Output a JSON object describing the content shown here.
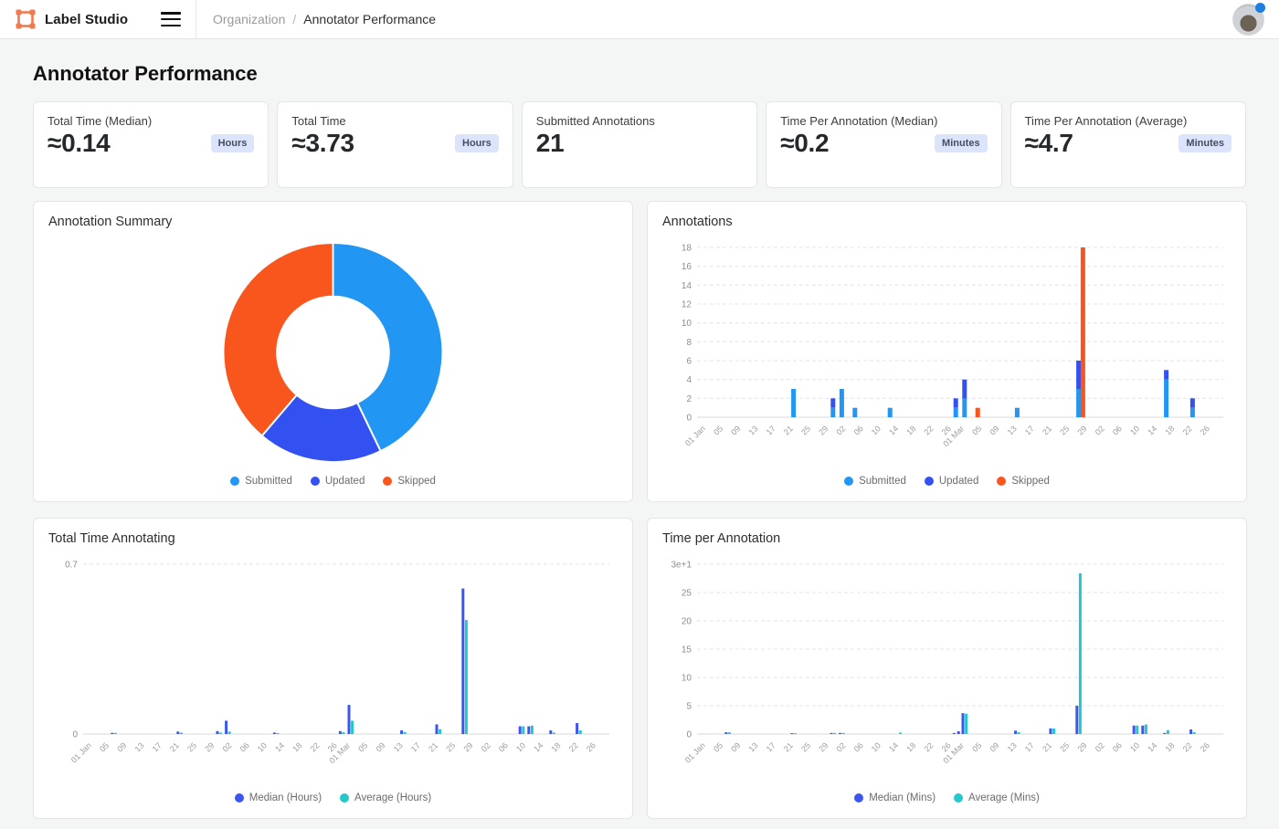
{
  "header": {
    "app_name": "Label Studio",
    "breadcrumb": {
      "parent": "Organization",
      "separator": "/",
      "current": "Annotator Performance"
    }
  },
  "page_title": "Annotator Performance",
  "stat_cards": [
    {
      "label": "Total Time (Median)",
      "value": "≈0.14",
      "unit": "Hours"
    },
    {
      "label": "Total Time",
      "value": "≈3.73",
      "unit": "Hours"
    },
    {
      "label": "Submitted Annotations",
      "value": "21",
      "unit": ""
    },
    {
      "label": "Time Per Annotation (Median)",
      "value": "≈0.2",
      "unit": "Minutes"
    },
    {
      "label": "Time Per Annotation (Average)",
      "value": "≈4.7",
      "unit": "Minutes"
    }
  ],
  "colors": {
    "submitted": "#2196F3",
    "updated": "#3350F1",
    "skipped": "#F9561E",
    "median": "#3D55F0",
    "average": "#24C7CB",
    "brand_orange": "#F0794F",
    "badge_bg": "#dbe4fb"
  },
  "x_axis": {
    "note": "days offset from 01 Jan",
    "domain": [
      -2,
      118
    ],
    "ticks": [
      {
        "d": 0,
        "l": "01 Jan"
      },
      {
        "d": 4,
        "l": "05"
      },
      {
        "d": 8,
        "l": "09"
      },
      {
        "d": 12,
        "l": "13"
      },
      {
        "d": 16,
        "l": "17"
      },
      {
        "d": 20,
        "l": "21"
      },
      {
        "d": 24,
        "l": "25"
      },
      {
        "d": 28,
        "l": "29"
      },
      {
        "d": 32,
        "l": "02"
      },
      {
        "d": 36,
        "l": "06"
      },
      {
        "d": 40,
        "l": "10"
      },
      {
        "d": 44,
        "l": "14"
      },
      {
        "d": 48,
        "l": "18"
      },
      {
        "d": 52,
        "l": "22"
      },
      {
        "d": 56,
        "l": "26"
      },
      {
        "d": 59,
        "l": "01 Mar"
      },
      {
        "d": 63,
        "l": "05"
      },
      {
        "d": 67,
        "l": "09"
      },
      {
        "d": 71,
        "l": "13"
      },
      {
        "d": 75,
        "l": "17"
      },
      {
        "d": 79,
        "l": "21"
      },
      {
        "d": 83,
        "l": "25"
      },
      {
        "d": 87,
        "l": "29"
      },
      {
        "d": 91,
        "l": "02"
      },
      {
        "d": 95,
        "l": "06"
      },
      {
        "d": 99,
        "l": "10"
      },
      {
        "d": 103,
        "l": "14"
      },
      {
        "d": 107,
        "l": "18"
      },
      {
        "d": 111,
        "l": "22"
      },
      {
        "d": 115,
        "l": "26"
      }
    ]
  },
  "chart_data": [
    {
      "type": "pie",
      "title": "Annotation Summary",
      "donut": true,
      "inner_ratio": 0.51,
      "labels": [
        "Submitted",
        "Updated",
        "Skipped"
      ],
      "values": [
        21,
        9,
        19
      ],
      "colors": [
        "#2196F3",
        "#3350F1",
        "#F9561E"
      ],
      "legend_position": "bottom"
    },
    {
      "type": "bar",
      "title": "Annotations",
      "stacked": true,
      "ylim": [
        0,
        18
      ],
      "y_ticks": [
        {
          "v": 0,
          "l": "0"
        },
        {
          "v": 2,
          "l": "2"
        },
        {
          "v": 4,
          "l": "4"
        },
        {
          "v": 6,
          "l": "6"
        },
        {
          "v": 8,
          "l": "8"
        },
        {
          "v": 10,
          "l": "10"
        },
        {
          "v": 12,
          "l": "12"
        },
        {
          "v": 14,
          "l": "14"
        },
        {
          "v": 16,
          "l": "16"
        },
        {
          "v": 18,
          "l": "18"
        }
      ],
      "series": [
        {
          "name": "Submitted",
          "color": "#2196F3",
          "points": [
            {
              "d": 20,
              "v": 3
            },
            {
              "d": 29,
              "v": 1
            },
            {
              "d": 31,
              "v": 3
            },
            {
              "d": 34,
              "v": 1
            },
            {
              "d": 42,
              "v": 1
            },
            {
              "d": 57,
              "v": 1
            },
            {
              "d": 59,
              "v": 2
            },
            {
              "d": 71,
              "v": 1
            },
            {
              "d": 85,
              "v": 3
            },
            {
              "d": 105,
              "v": 4
            },
            {
              "d": 111,
              "v": 1
            }
          ]
        },
        {
          "name": "Updated",
          "color": "#3350F1",
          "points": [
            {
              "d": 29,
              "v": 1
            },
            {
              "d": 57,
              "v": 1
            },
            {
              "d": 59,
              "v": 2
            },
            {
              "d": 85,
              "v": 3
            },
            {
              "d": 105,
              "v": 1
            },
            {
              "d": 111,
              "v": 1
            }
          ]
        },
        {
          "name": "Skipped",
          "color": "#F9561E",
          "points": [
            {
              "d": 62,
              "v": 1
            },
            {
              "d": 86,
              "v": 18
            }
          ]
        }
      ],
      "legend_position": "bottom"
    },
    {
      "type": "bar",
      "title": "Total Time Annotating",
      "grouped": true,
      "ylim": [
        0,
        0.7
      ],
      "y_ticks": [
        {
          "v": 0,
          "l": "0"
        },
        {
          "v": 0.7,
          "l": "0.7"
        }
      ],
      "series": [
        {
          "name": "Median (Hours)",
          "color": "#3D55F0",
          "points": [
            {
              "d": 5,
              "v": 0.005
            },
            {
              "d": 20,
              "v": 0.01
            },
            {
              "d": 29,
              "v": 0.012
            },
            {
              "d": 31,
              "v": 0.055
            },
            {
              "d": 42,
              "v": 0.006
            },
            {
              "d": 57,
              "v": 0.012
            },
            {
              "d": 59,
              "v": 0.12
            },
            {
              "d": 71,
              "v": 0.015
            },
            {
              "d": 79,
              "v": 0.04
            },
            {
              "d": 85,
              "v": 0.6
            },
            {
              "d": 98,
              "v": 0.032
            },
            {
              "d": 100,
              "v": 0.032
            },
            {
              "d": 105,
              "v": 0.015
            },
            {
              "d": 111,
              "v": 0.045
            }
          ]
        },
        {
          "name": "Average (Hours)",
          "color": "#24C7CB",
          "points": [
            {
              "d": 5,
              "v": 0.005
            },
            {
              "d": 20,
              "v": 0.006
            },
            {
              "d": 29,
              "v": 0.006
            },
            {
              "d": 31,
              "v": 0.01
            },
            {
              "d": 42,
              "v": 0.004
            },
            {
              "d": 57,
              "v": 0.008
            },
            {
              "d": 59,
              "v": 0.055
            },
            {
              "d": 71,
              "v": 0.008
            },
            {
              "d": 79,
              "v": 0.02
            },
            {
              "d": 85,
              "v": 0.47
            },
            {
              "d": 98,
              "v": 0.032
            },
            {
              "d": 100,
              "v": 0.035
            },
            {
              "d": 105,
              "v": 0.006
            },
            {
              "d": 111,
              "v": 0.015
            }
          ]
        }
      ],
      "legend_position": "bottom"
    },
    {
      "type": "bar",
      "title": "Time per Annotation",
      "grouped": true,
      "ylim": [
        0,
        30
      ],
      "y_ticks": [
        {
          "v": 0,
          "l": "0"
        },
        {
          "v": 5,
          "l": "5"
        },
        {
          "v": 10,
          "l": "10"
        },
        {
          "v": 15,
          "l": "15"
        },
        {
          "v": 20,
          "l": "20"
        },
        {
          "v": 25,
          "l": "25"
        },
        {
          "v": 30,
          "l": "3e+1"
        }
      ],
      "series": [
        {
          "name": "Median (Mins)",
          "color": "#3D55F0",
          "points": [
            {
              "d": 5,
              "v": 0.3
            },
            {
              "d": 20,
              "v": 0.15
            },
            {
              "d": 29,
              "v": 0.2
            },
            {
              "d": 31,
              "v": 0.2
            },
            {
              "d": 57,
              "v": 0.2
            },
            {
              "d": 58,
              "v": 0.5
            },
            {
              "d": 59,
              "v": 3.7
            },
            {
              "d": 71,
              "v": 0.6
            },
            {
              "d": 79,
              "v": 1.0
            },
            {
              "d": 85,
              "v": 5.0
            },
            {
              "d": 98,
              "v": 1.5
            },
            {
              "d": 100,
              "v": 1.5
            },
            {
              "d": 105,
              "v": 0.2
            },
            {
              "d": 111,
              "v": 0.8
            }
          ]
        },
        {
          "name": "Average (Mins)",
          "color": "#24C7CB",
          "points": [
            {
              "d": 5,
              "v": 0.3
            },
            {
              "d": 20,
              "v": 0.15
            },
            {
              "d": 29,
              "v": 0.2
            },
            {
              "d": 31,
              "v": 0.2
            },
            {
              "d": 44,
              "v": 0.25
            },
            {
              "d": 59,
              "v": 3.6
            },
            {
              "d": 71,
              "v": 0.3
            },
            {
              "d": 79,
              "v": 1.0
            },
            {
              "d": 85,
              "v": 28.4
            },
            {
              "d": 98,
              "v": 1.5
            },
            {
              "d": 100,
              "v": 1.7
            },
            {
              "d": 105,
              "v": 0.7
            },
            {
              "d": 111,
              "v": 0.3
            }
          ]
        }
      ],
      "legend_position": "bottom"
    }
  ]
}
